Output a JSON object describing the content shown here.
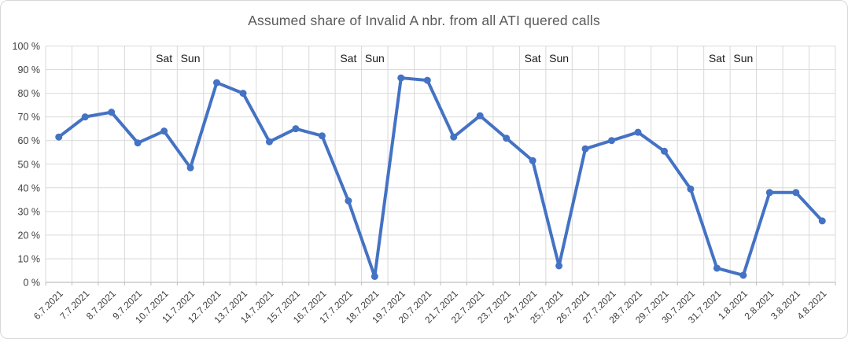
{
  "window": {
    "background": "#ffffff",
    "border_color": "#d6d6d6"
  },
  "chart_data": {
    "type": "line",
    "title": "Assumed share of Invalid A nbr. from all ATI quered calls",
    "categories": [
      "6.7.2021",
      "7.7.2021",
      "8.7.2021",
      "9.7.2021",
      "10.7.2021",
      "11.7.2021",
      "12.7.2021",
      "13.7.2021",
      "14.7.2021",
      "15.7.2021",
      "16.7.2021",
      "17.7.2021",
      "18.7.2021",
      "19.7.2021",
      "20.7.2021",
      "21.7.2021",
      "22.7.2021",
      "23.7.2021",
      "24.7.2021",
      "25.7.2021",
      "26.7.2021",
      "27.7.2021",
      "28.7.2021",
      "29.7.2021",
      "30.7.2021",
      "31.7.2021",
      "1.8.2021",
      "2.8.2021",
      "3.8.2021",
      "4.8.2021"
    ],
    "series": [
      {
        "name": "Assumed share of Invalid A nbr.",
        "values": [
          61.5,
          70,
          72,
          59,
          64,
          48.5,
          84.5,
          80,
          59.5,
          65,
          62,
          34.5,
          2.5,
          86.5,
          85.5,
          61.5,
          70.5,
          61,
          51.5,
          7,
          56.5,
          60,
          63.5,
          55.5,
          39.5,
          6,
          3,
          38,
          38,
          26
        ]
      }
    ],
    "weekend_annotations": [
      {
        "index": 4,
        "label": "Sat"
      },
      {
        "index": 5,
        "label": "Sun"
      },
      {
        "index": 11,
        "label": "Sat"
      },
      {
        "index": 12,
        "label": "Sun"
      },
      {
        "index": 18,
        "label": "Sat"
      },
      {
        "index": 19,
        "label": "Sun"
      },
      {
        "index": 25,
        "label": "Sat"
      },
      {
        "index": 26,
        "label": "Sun"
      }
    ],
    "y_axis": {
      "ticks": [
        {
          "value": 0,
          "label": "0 %"
        },
        {
          "value": 10,
          "label": "10 %"
        },
        {
          "value": 20,
          "label": "20 %"
        },
        {
          "value": 30,
          "label": "30 %"
        },
        {
          "value": 40,
          "label": "40 %"
        },
        {
          "value": 50,
          "label": "50 %"
        },
        {
          "value": 60,
          "label": "60 %"
        },
        {
          "value": 70,
          "label": "70 %"
        },
        {
          "value": 80,
          "label": "80 %"
        },
        {
          "value": 90,
          "label": "90 %"
        },
        {
          "value": 100,
          "label": "100 %"
        }
      ]
    },
    "ylim": [
      0,
      100
    ],
    "grid": true,
    "legend": "none",
    "colors": {
      "line": "#4472C4",
      "marker": "#4472C4",
      "grid": "#d9d9d9",
      "axis": "#bfbfbf",
      "title": "#595959",
      "tick_label": "#404040",
      "annotation": "#1a1a1a"
    }
  }
}
